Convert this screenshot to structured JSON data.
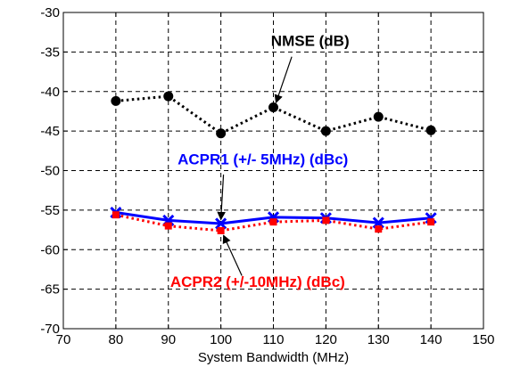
{
  "chart_data": {
    "type": "line",
    "title": "",
    "xlabel": "System Bandwidth (MHz)",
    "ylabel": "",
    "xlim": [
      70,
      150
    ],
    "ylim": [
      -70,
      -30
    ],
    "xticks": [
      70,
      80,
      90,
      100,
      110,
      120,
      130,
      140,
      150
    ],
    "yticks": [
      -30,
      -35,
      -40,
      -45,
      -50,
      -55,
      -60,
      -65,
      -70
    ],
    "grid": true,
    "x": [
      80,
      90,
      100,
      110,
      120,
      130,
      140
    ],
    "series": [
      {
        "key": "nmse",
        "values": [
          -41.2,
          -40.6,
          -45.3,
          -42.0,
          -45.0,
          -43.2,
          -44.9
        ],
        "color": "#000000",
        "line_style": "dotted",
        "marker": "circle"
      },
      {
        "key": "acpr1",
        "values": [
          -55.3,
          -56.3,
          -56.7,
          -55.9,
          -56.0,
          -56.6,
          -56.0
        ],
        "color": "#0000ff",
        "line_style": "solid",
        "marker": "x"
      },
      {
        "key": "acpr2",
        "values": [
          -55.6,
          -57.0,
          -57.6,
          -56.5,
          -56.3,
          -57.4,
          -56.5
        ],
        "color": "#ff0000",
        "line_style": "dotted",
        "marker": "square"
      }
    ],
    "annotations": [
      {
        "key": "nmse",
        "text": "NMSE (dB)",
        "color": "#000000",
        "x": 117,
        "y": -34.2,
        "arrow_from": [
          113.5,
          -35.6
        ],
        "arrow_to": [
          110.5,
          -41.4
        ]
      },
      {
        "key": "acpr1",
        "text": "ACPR1 (+/- 5MHz) (dBc)",
        "color": "#0000ff",
        "x": 108,
        "y": -49.2,
        "arrow_from": [
          100.5,
          -50.5
        ],
        "arrow_to": [
          100.0,
          -56.2
        ]
      },
      {
        "key": "acpr2",
        "text": "ACPR2 (+/-10MHz) (dBc)",
        "color": "#ff0000",
        "x": 107,
        "y": -64.7,
        "arrow_from": [
          104.0,
          -63.3
        ],
        "arrow_to": [
          100.5,
          -58.2
        ]
      }
    ]
  }
}
